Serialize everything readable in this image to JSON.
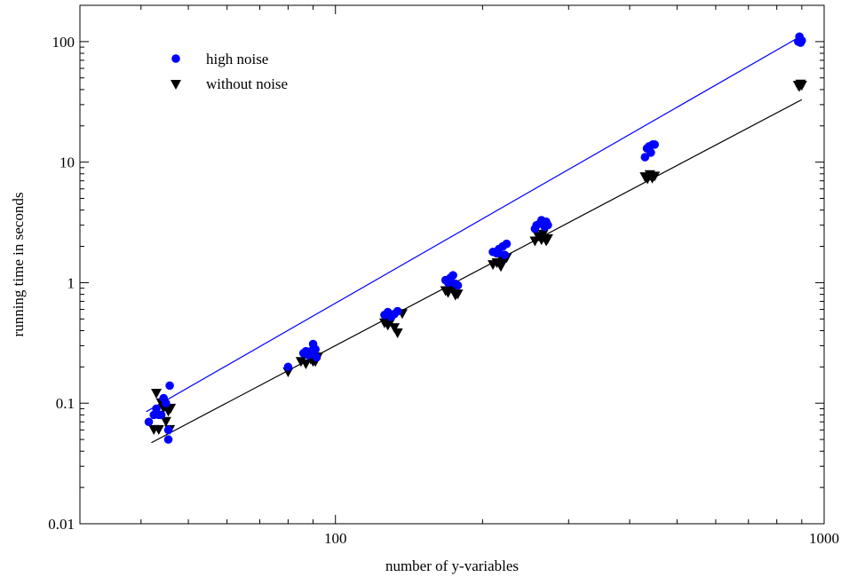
{
  "chart_data": {
    "type": "scatter",
    "xlabel": "number of y-variables",
    "ylabel": "running time in seconds",
    "xscale": "log",
    "yscale": "log",
    "xlim": [
      30,
      1000
    ],
    "ylim": [
      0.01,
      200
    ],
    "x_ticks": [
      {
        "value": 100,
        "label": "100"
      },
      {
        "value": 1000,
        "label": "1000"
      }
    ],
    "y_ticks": [
      {
        "value": 0.01,
        "label": "0.01"
      },
      {
        "value": 0.1,
        "label": "0.1"
      },
      {
        "value": 1,
        "label": "1"
      },
      {
        "value": 10,
        "label": "10"
      },
      {
        "value": 100,
        "label": "100"
      }
    ],
    "grid": false,
    "legend_position": "top-left",
    "series": [
      {
        "name": "high noise",
        "marker": "circle",
        "color": "#0000ff",
        "points": [
          [
            41.5,
            0.07
          ],
          [
            42.5,
            0.08
          ],
          [
            43,
            0.09
          ],
          [
            43.5,
            0.08
          ],
          [
            44,
            0.08
          ],
          [
            44.5,
            0.11
          ],
          [
            45,
            0.1
          ],
          [
            45.5,
            0.06
          ],
          [
            45.8,
            0.14
          ],
          [
            45.5,
            0.05
          ],
          [
            80,
            0.2
          ],
          [
            86,
            0.26
          ],
          [
            87,
            0.27
          ],
          [
            88,
            0.25
          ],
          [
            89,
            0.27
          ],
          [
            90,
            0.31
          ],
          [
            91,
            0.28
          ],
          [
            91.5,
            0.24
          ],
          [
            126,
            0.54
          ],
          [
            128,
            0.57
          ],
          [
            130,
            0.52
          ],
          [
            132,
            0.55
          ],
          [
            134,
            0.58
          ],
          [
            168,
            1.05
          ],
          [
            170,
            1.0
          ],
          [
            172,
            1.1
          ],
          [
            174,
            1.15
          ],
          [
            176,
            0.98
          ],
          [
            178,
            0.95
          ],
          [
            210,
            1.8
          ],
          [
            214,
            1.75
          ],
          [
            216,
            1.9
          ],
          [
            220,
            2.0
          ],
          [
            222,
            1.7
          ],
          [
            224,
            2.1
          ],
          [
            256,
            2.8
          ],
          [
            258,
            3.0
          ],
          [
            262,
            3.1
          ],
          [
            264,
            3.3
          ],
          [
            268,
            2.9
          ],
          [
            270,
            3.2
          ],
          [
            272,
            3.0
          ],
          [
            430,
            11
          ],
          [
            434,
            13
          ],
          [
            438,
            13.5
          ],
          [
            442,
            12
          ],
          [
            446,
            14
          ],
          [
            450,
            14
          ],
          [
            885,
            100
          ],
          [
            890,
            110
          ],
          [
            895,
            98
          ],
          [
            900,
            102
          ]
        ],
        "fit": [
          [
            41,
            0.085
          ],
          [
            900,
            112
          ]
        ]
      },
      {
        "name": "without noise",
        "marker": "triangle-down",
        "color": "#000000",
        "points": [
          [
            42.5,
            0.06
          ],
          [
            43,
            0.12
          ],
          [
            43.5,
            0.06
          ],
          [
            44,
            0.1
          ],
          [
            44.5,
            0.09
          ],
          [
            45,
            0.07
          ],
          [
            45.5,
            0.085
          ],
          [
            46,
            0.09
          ],
          [
            45.8,
            0.06
          ],
          [
            80,
            0.18
          ],
          [
            85,
            0.22
          ],
          [
            87,
            0.21
          ],
          [
            89,
            0.23
          ],
          [
            90,
            0.22
          ],
          [
            91,
            0.22
          ],
          [
            92,
            0.24
          ],
          [
            126,
            0.46
          ],
          [
            128,
            0.44
          ],
          [
            130,
            0.48
          ],
          [
            132,
            0.42
          ],
          [
            134,
            0.38
          ],
          [
            137,
            0.55
          ],
          [
            168,
            0.85
          ],
          [
            170,
            0.82
          ],
          [
            172,
            0.9
          ],
          [
            174,
            0.88
          ],
          [
            176,
            0.78
          ],
          [
            178,
            0.8
          ],
          [
            210,
            1.4
          ],
          [
            214,
            1.45
          ],
          [
            218,
            1.35
          ],
          [
            220,
            1.5
          ],
          [
            222,
            1.55
          ],
          [
            224,
            1.6
          ],
          [
            256,
            2.2
          ],
          [
            260,
            2.4
          ],
          [
            264,
            2.25
          ],
          [
            266,
            2.5
          ],
          [
            270,
            2.2
          ],
          [
            272,
            2.3
          ],
          [
            430,
            7.5
          ],
          [
            435,
            7.2
          ],
          [
            440,
            7.8
          ],
          [
            445,
            7.3
          ],
          [
            450,
            7.6
          ],
          [
            885,
            43
          ],
          [
            890,
            42
          ],
          [
            895,
            44
          ],
          [
            900,
            43
          ]
        ],
        "fit": [
          [
            42,
            0.047
          ],
          [
            900,
            33
          ]
        ]
      }
    ]
  }
}
